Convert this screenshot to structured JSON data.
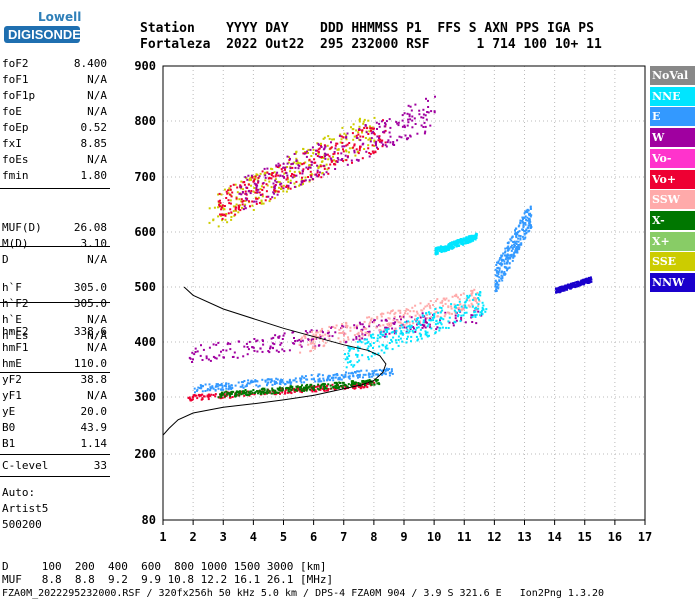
{
  "logo": {
    "top": "Lowell",
    "bottom": "DIGISONDE"
  },
  "header": {
    "line1": "Station    YYYY DAY    DDD HHMMSS P1  FFS S AXN PPS IGA PS",
    "line2": "Fortaleza  2022 Out22  295 232000 RSF      1 714 100 10+ 11"
  },
  "params_group1": [
    {
      "k": "foF2",
      "v": "8.400"
    },
    {
      "k": "foF1",
      "v": "N/A"
    },
    {
      "k": "foF1p",
      "v": "N/A"
    },
    {
      "k": "foE",
      "v": "N/A"
    },
    {
      "k": "foEp",
      "v": "0.52"
    },
    {
      "k": "fxI",
      "v": "8.85"
    },
    {
      "k": "foEs",
      "v": "N/A"
    },
    {
      "k": "fmin",
      "v": "1.80"
    }
  ],
  "params_group2": [
    {
      "k": "MUF(D)",
      "v": "26.08"
    },
    {
      "k": "M(D)",
      "v": "3.10"
    },
    {
      "k": "D",
      "v": "N/A"
    }
  ],
  "params_group3": [
    {
      "k": "h`F",
      "v": "305.0"
    },
    {
      "k": "h`F2",
      "v": "305.0"
    },
    {
      "k": "h`E",
      "v": "N/A"
    },
    {
      "k": "h`Es",
      "v": "N/A"
    }
  ],
  "params_group4": [
    {
      "k": "hmF2",
      "v": "338.6"
    },
    {
      "k": "hmF1",
      "v": "N/A"
    },
    {
      "k": "hmE",
      "v": "110.0"
    },
    {
      "k": "yF2",
      "v": "38.8"
    },
    {
      "k": "yF1",
      "v": "N/A"
    },
    {
      "k": "yE",
      "v": "20.0"
    },
    {
      "k": "B0",
      "v": "43.9"
    },
    {
      "k": "B1",
      "v": "1.14"
    }
  ],
  "params_group5": [
    {
      "k": "C-level",
      "v": "33"
    }
  ],
  "auto": {
    "l1": "Auto:",
    "l2": "Artist5",
    "l3": "500200"
  },
  "footer": {
    "l1": "D     100  200  400  600  800 1000 1500 3000 [km]",
    "l2": "MUF   8.8  8.8  9.2  9.9 10.8 12.2 16.1 26.1 [MHz]",
    "l3": "FZA0M_2022295232000.RSF / 320fx256h 50 kHz 5.0 km / DPS-4 FZA0M 904 / 3.9 S 321.6 E   Ion2Png 1.3.20"
  },
  "legend": [
    {
      "label": "NoVal",
      "color": "#888888"
    },
    {
      "label": "NNE",
      "color": "#00e5ff"
    },
    {
      "label": "E",
      "color": "#3399ff"
    },
    {
      "label": "W",
      "color": "#a000a0"
    },
    {
      "label": "Vo-",
      "color": "#ff33cc"
    },
    {
      "label": "Vo+",
      "color": "#ee0033"
    },
    {
      "label": "SSW",
      "color": "#ffaaaa"
    },
    {
      "label": "X-",
      "color": "#007700"
    },
    {
      "label": "X+",
      "color": "#88cc66"
    },
    {
      "label": "SSE",
      "color": "#cccc00"
    },
    {
      "label": "NNW",
      "color": "#1a00cc"
    }
  ],
  "chart_data": {
    "type": "scatter",
    "x_ticks": [
      "1",
      "2",
      "3",
      "4",
      "5",
      "6",
      "7",
      "8",
      "9",
      "10",
      "11",
      "12",
      "13",
      "14",
      "15",
      "16",
      "17"
    ],
    "y_ticks": [
      "80",
      "200",
      "300",
      "400",
      "500",
      "600",
      "700",
      "800",
      "900"
    ],
    "xlim": [
      1,
      17
    ],
    "ylim_km": [
      80,
      900
    ],
    "y_scale": "nonlinear",
    "profile_curve": {
      "x": [
        1.0,
        1.2,
        1.5,
        2.0,
        3.0,
        4.0,
        5.0,
        6.0,
        7.0,
        7.6,
        8.0,
        8.3,
        8.4,
        8.2,
        7.8,
        7.0,
        5.0,
        3.0,
        2.0,
        1.7
      ],
      "y": [
        233,
        245,
        260,
        272,
        282,
        288,
        295,
        303,
        315,
        322,
        330,
        345,
        360,
        375,
        385,
        395,
        425,
        460,
        485,
        500
      ]
    },
    "dot_bands": [
      {
        "color": "#a000a0",
        "x": [
          1.8,
          11.6
        ],
        "y": [
          360,
          470
        ]
      },
      {
        "color": "#ee0033",
        "x": [
          1.8,
          8.0
        ],
        "y": [
          295,
          330
        ]
      },
      {
        "color": "#3399ff",
        "x": [
          2.0,
          8.6
        ],
        "y": [
          310,
          355
        ]
      },
      {
        "color": "#007700",
        "x": [
          2.8,
          8.2
        ],
        "y": [
          300,
          335
        ]
      },
      {
        "color": "#ffaaaa",
        "x": [
          5.5,
          11.5
        ],
        "y": [
          380,
          500
        ]
      },
      {
        "color": "#00e5ff",
        "x": [
          7.0,
          11.7
        ],
        "y": [
          350,
          500
        ]
      },
      {
        "color": "#cccc00",
        "x": [
          2.5,
          8.0
        ],
        "y": [
          600,
          820
        ]
      },
      {
        "color": "#ee0033",
        "x": [
          2.8,
          8.4
        ],
        "y": [
          620,
          810
        ]
      },
      {
        "color": "#a000a0",
        "x": [
          3.5,
          10.0
        ],
        "y": [
          640,
          850
        ]
      },
      {
        "color": "#00e5ff",
        "x": [
          10.0,
          11.4
        ],
        "y": [
          560,
          600
        ]
      },
      {
        "color": "#3399ff",
        "x": [
          12.0,
          13.2
        ],
        "y": [
          490,
          660
        ]
      },
      {
        "color": "#1a00cc",
        "x": [
          14.0,
          15.2
        ],
        "y": [
          490,
          520
        ]
      }
    ]
  }
}
